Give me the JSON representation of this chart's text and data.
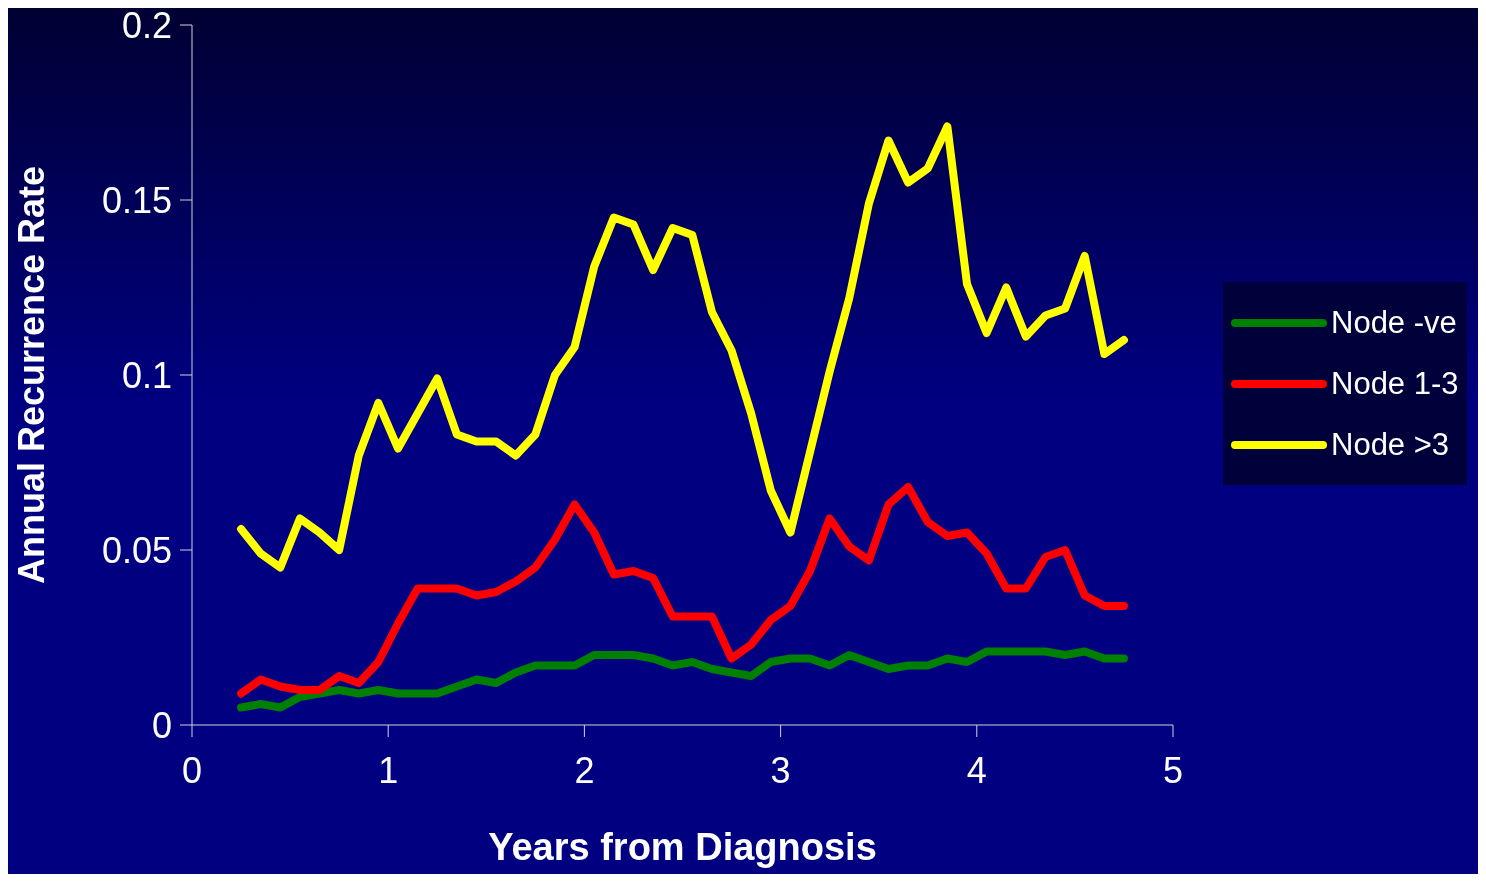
{
  "chart_data": {
    "type": "line",
    "xlabel": "Years from Diagnosis",
    "ylabel": "Annual Recurrence Rate",
    "x": [
      0.25,
      0.35,
      0.45,
      0.55,
      0.65,
      0.75,
      0.85,
      0.95,
      1.05,
      1.15,
      1.25,
      1.35,
      1.45,
      1.55,
      1.65,
      1.75,
      1.85,
      1.95,
      2.05,
      2.15,
      2.25,
      2.35,
      2.45,
      2.55,
      2.65,
      2.75,
      2.85,
      2.95,
      3.05,
      3.15,
      3.25,
      3.35,
      3.45,
      3.55,
      3.65,
      3.75,
      3.85,
      3.95,
      4.05,
      4.15,
      4.25,
      4.35,
      4.45,
      4.55,
      4.65,
      4.75
    ],
    "series": [
      {
        "name": "Node -ve",
        "color": "#008000",
        "values": [
          0.005,
          0.006,
          0.005,
          0.008,
          0.009,
          0.01,
          0.009,
          0.01,
          0.009,
          0.009,
          0.009,
          0.011,
          0.013,
          0.012,
          0.015,
          0.017,
          0.017,
          0.017,
          0.02,
          0.02,
          0.02,
          0.019,
          0.017,
          0.018,
          0.016,
          0.015,
          0.014,
          0.018,
          0.019,
          0.019,
          0.017,
          0.02,
          0.018,
          0.016,
          0.017,
          0.017,
          0.019,
          0.018,
          0.021,
          0.021,
          0.021,
          0.021,
          0.02,
          0.021,
          0.019,
          0.019
        ]
      },
      {
        "name": "Node 1-3",
        "color": "#ff0000",
        "values": [
          0.009,
          0.013,
          0.011,
          0.01,
          0.01,
          0.014,
          0.012,
          0.018,
          0.029,
          0.039,
          0.039,
          0.039,
          0.037,
          0.038,
          0.041,
          0.045,
          0.053,
          0.063,
          0.055,
          0.043,
          0.044,
          0.042,
          0.031,
          0.031,
          0.031,
          0.019,
          0.023,
          0.03,
          0.034,
          0.044,
          0.059,
          0.051,
          0.047,
          0.063,
          0.068,
          0.058,
          0.054,
          0.055,
          0.049,
          0.039,
          0.039,
          0.048,
          0.05,
          0.037,
          0.034,
          0.034
        ]
      },
      {
        "name": "Node >3",
        "color": "#ffff00",
        "values": [
          0.056,
          0.049,
          0.045,
          0.059,
          0.055,
          0.05,
          0.077,
          0.092,
          0.079,
          0.089,
          0.099,
          0.083,
          0.081,
          0.081,
          0.077,
          0.083,
          0.1,
          0.108,
          0.131,
          0.145,
          0.143,
          0.13,
          0.142,
          0.14,
          0.118,
          0.107,
          0.089,
          0.067,
          0.055,
          0.078,
          0.101,
          0.122,
          0.149,
          0.167,
          0.155,
          0.159,
          0.171,
          0.126,
          0.112,
          0.125,
          0.111,
          0.117,
          0.119,
          0.134,
          0.106,
          0.11
        ]
      }
    ],
    "xlim": [
      0,
      5
    ],
    "xticks": [
      0,
      1,
      2,
      3,
      4,
      5
    ],
    "ylim": [
      0,
      0.2
    ],
    "yticks": [
      0,
      0.05,
      0.1,
      0.15,
      0.2
    ],
    "grid": false,
    "legend": "right",
    "line_style": "solid"
  }
}
